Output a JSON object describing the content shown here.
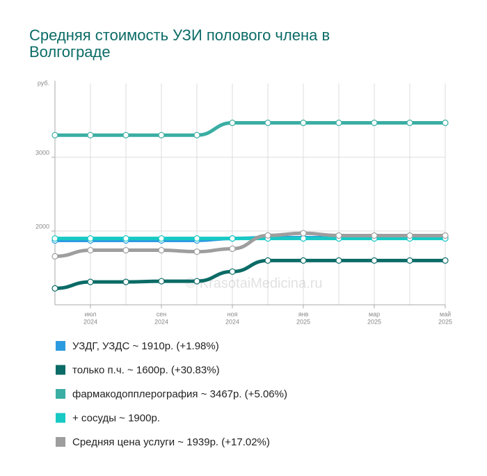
{
  "chart_data": {
    "type": "line",
    "title": [
      "Средняя стоимость УЗИ полового члена в",
      "Волгограде"
    ],
    "y_unit": "руб.",
    "watermark": "© KrasotaiMedicina.ru",
    "categories": [
      null,
      "июл",
      null,
      "сен",
      null,
      "ноя",
      null,
      "янв",
      null,
      "мар",
      null,
      "май"
    ],
    "category_years": [
      null,
      "2024",
      null,
      "2024",
      null,
      "2024",
      null,
      "2025",
      null,
      "2025",
      null,
      "2025"
    ],
    "ylim": [
      1000,
      4000
    ],
    "yticks": [
      2000,
      3000
    ],
    "grid": true,
    "series": [
      {
        "name": "УЗДГ, УЗДС ~ 1910р. (+1.98%)",
        "color": "#2b9be0",
        "values": [
          1873,
          1873,
          1873,
          1873,
          1873,
          1900,
          1910,
          1910,
          1910,
          1910,
          1910,
          1910
        ]
      },
      {
        "name": "только п.ч. ~ 1600р. (+30.83%)",
        "color": "#0b6b66",
        "values": [
          1223,
          1310,
          1310,
          1320,
          1320,
          1450,
          1600,
          1600,
          1600,
          1600,
          1600,
          1600
        ]
      },
      {
        "name": "фармакодопплерография ~ 3467р. (+5.06%)",
        "color": "#3aaea3",
        "values": [
          3300,
          3300,
          3300,
          3300,
          3300,
          3467,
          3467,
          3467,
          3467,
          3467,
          3467,
          3467
        ]
      },
      {
        "name": "+ сосуды ~ 1900р.",
        "color": "#18c9c4",
        "values": [
          1900,
          1900,
          1900,
          1900,
          1900,
          1900,
          1900,
          1900,
          1900,
          1900,
          1900,
          1900
        ]
      },
      {
        "name": "Средняя цена услуги ~ 1939р. (+17.02%)",
        "color": "#9e9e9e",
        "values": [
          1657,
          1740,
          1740,
          1740,
          1720,
          1760,
          1940,
          1970,
          1939,
          1939,
          1939,
          1939
        ]
      }
    ]
  }
}
